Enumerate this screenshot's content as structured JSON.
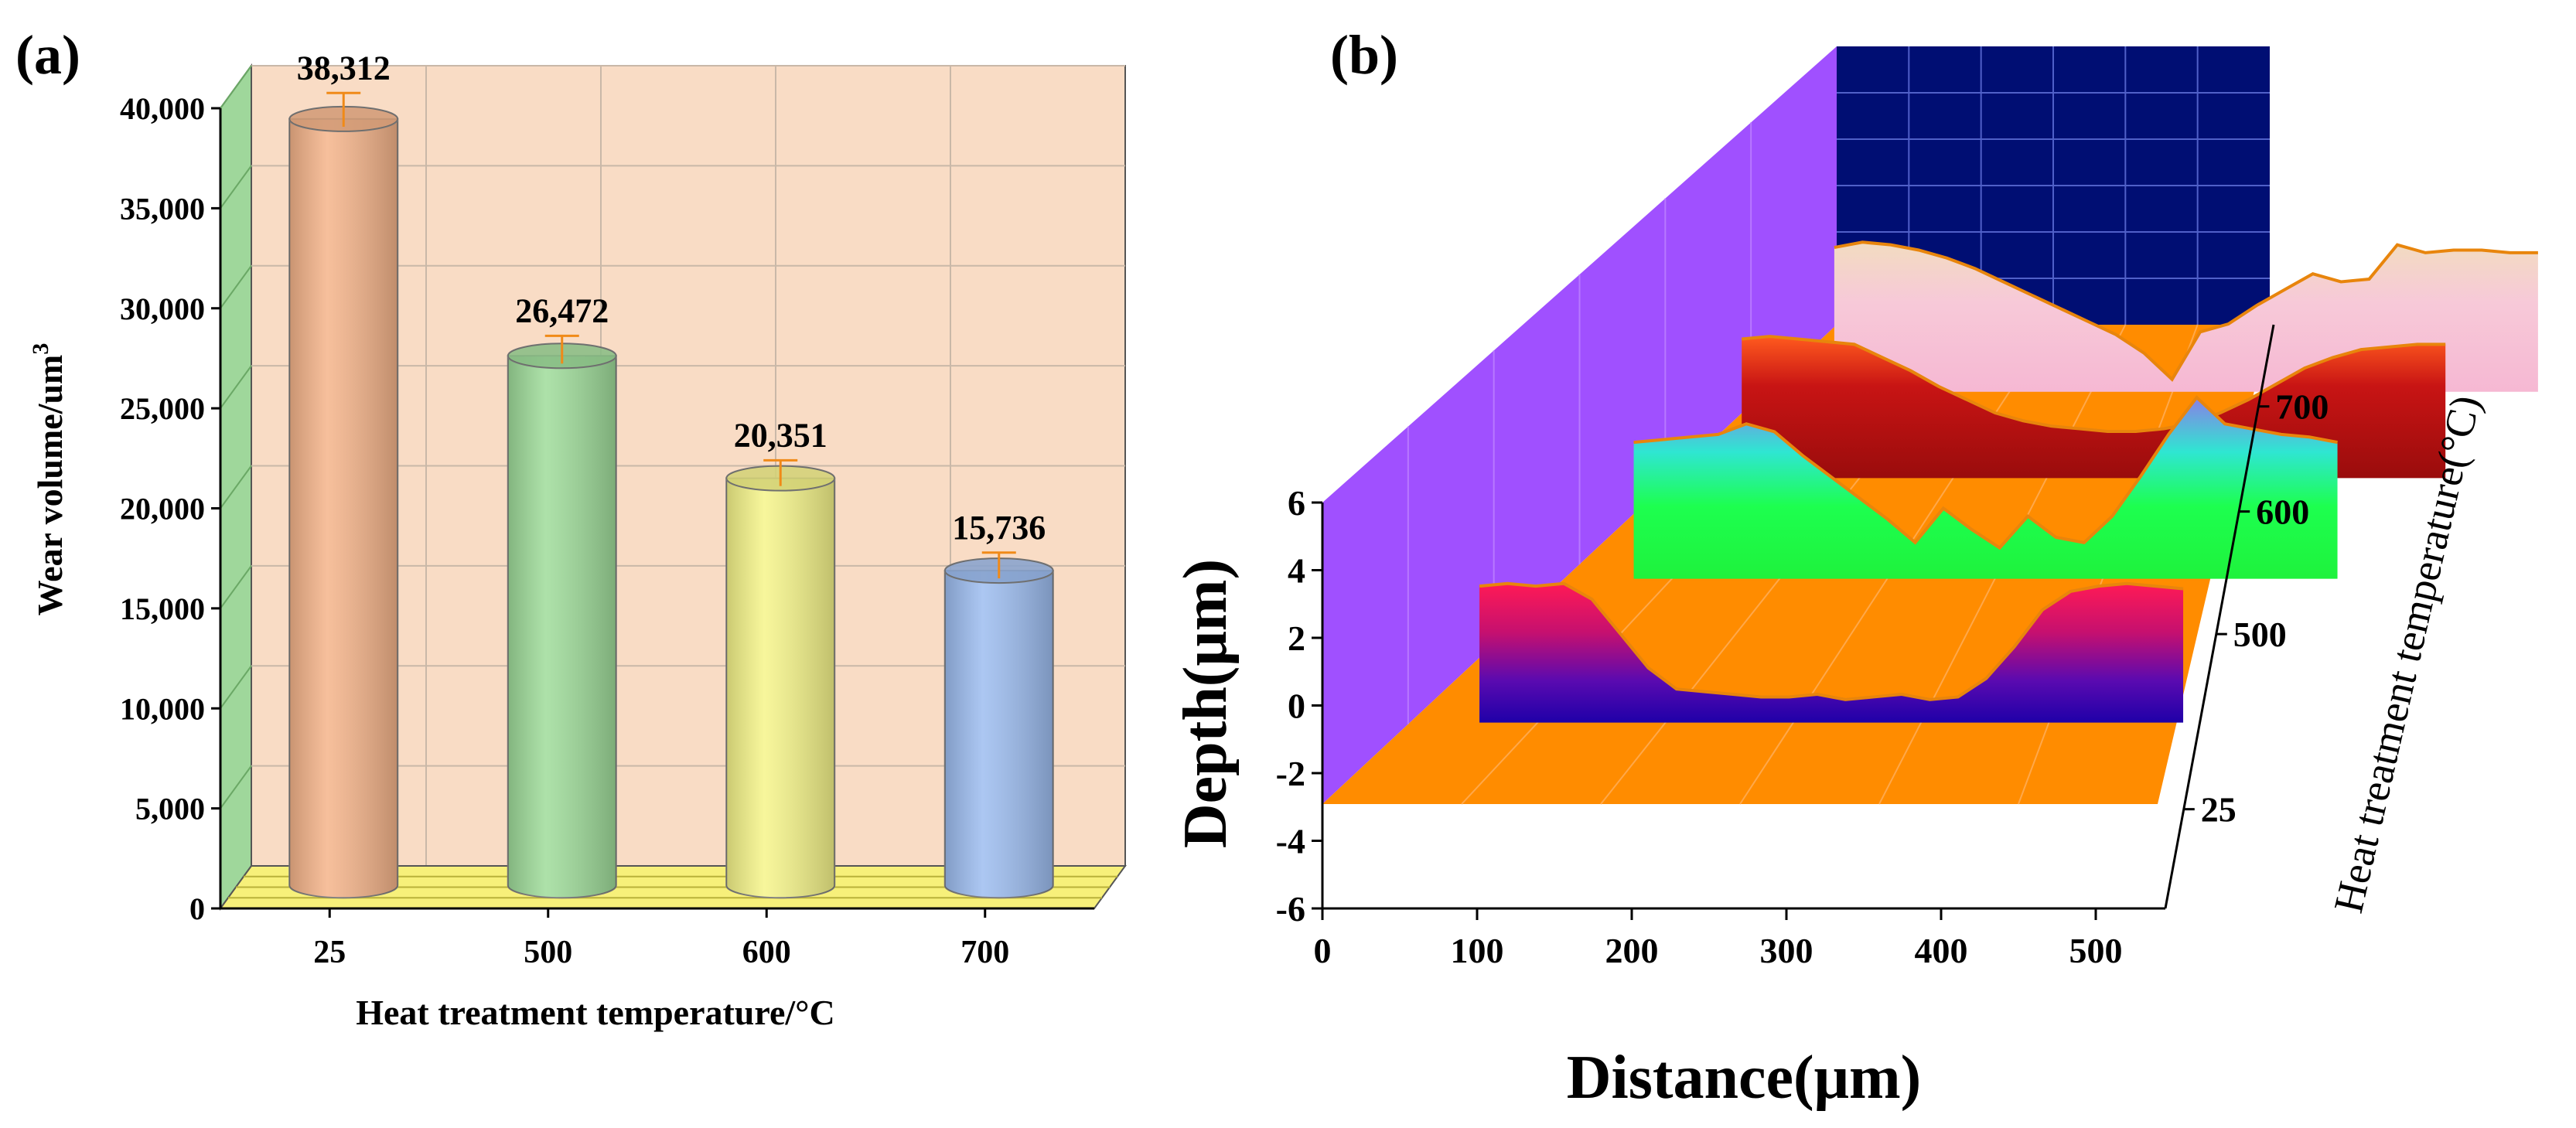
{
  "panel_labels": {
    "a": "(a)",
    "b": "(b)"
  },
  "chart_data": [
    {
      "panel": "(a)",
      "type": "bar",
      "style": "3d-cylinder",
      "categories": [
        "25",
        "500",
        "600",
        "700"
      ],
      "values": [
        38312,
        26472,
        20351,
        15736
      ],
      "value_labels": [
        "38,312",
        "26,472",
        "20,351",
        "15,736"
      ],
      "error_bars": [
        1300,
        1000,
        900,
        900
      ],
      "colors": [
        "#f5b48a",
        "#9fdc9a",
        "#f6f58a",
        "#9dbdf0"
      ],
      "xlabel": "Heat treatment temperature/°C",
      "ylabel": "Wear volume/um",
      "ylabel_superscript": "3",
      "ylim": [
        0,
        40000
      ],
      "yticks": [
        0,
        5000,
        10000,
        15000,
        20000,
        25000,
        30000,
        35000,
        40000
      ],
      "ytick_labels": [
        "0",
        "5,000",
        "10,000",
        "15,000",
        "20,000",
        "25,000",
        "30,000",
        "35,000",
        "40,000"
      ],
      "grid": true,
      "wall_color": "#f9dcc5",
      "side_wall_color": "#9fd79b",
      "floor_color": "#f7f07a"
    },
    {
      "panel": "(b)",
      "type": "area",
      "style": "3d-waterfall",
      "xlabel": "Distance(μm)",
      "ylabel": "Depth(μm)",
      "zlabel": "Heat treatment temperature(°C)",
      "xlim": [
        0,
        500
      ],
      "xticks": [
        "0",
        "100",
        "200",
        "300",
        "400",
        "500"
      ],
      "ylim": [
        -6,
        6
      ],
      "yticks": [
        "-6",
        "-4",
        "-2",
        "0",
        "2",
        "4",
        "6"
      ],
      "zticks": [
        "25",
        "500",
        "600",
        "700"
      ],
      "colors": {
        "side_wall": "#a050ff",
        "back_wall": "#000e73",
        "floor": "#ff8c00",
        "grid": "#d0d6ff"
      },
      "series": [
        {
          "name": "25",
          "x": [
            0,
            20,
            40,
            60,
            80,
            100,
            120,
            140,
            160,
            180,
            200,
            220,
            240,
            260,
            280,
            300,
            320,
            340,
            360,
            380,
            400,
            420,
            440,
            460,
            480,
            500
          ],
          "y": [
            4.3,
            4.4,
            4.3,
            4.4,
            3.8,
            2.5,
            1.2,
            0.4,
            0.3,
            0.2,
            0.1,
            0.1,
            0.2,
            0.0,
            0.1,
            0.2,
            0.0,
            0.1,
            0.8,
            2.0,
            3.4,
            4.1,
            4.3,
            4.4,
            4.3,
            4.2
          ]
        },
        {
          "name": "500",
          "x": [
            0,
            20,
            40,
            60,
            80,
            100,
            120,
            140,
            160,
            180,
            200,
            220,
            240,
            260,
            280,
            300,
            320,
            340,
            360,
            380,
            400,
            420,
            440,
            460,
            480,
            500
          ],
          "y": [
            4.3,
            4.4,
            4.5,
            4.6,
            5.0,
            4.7,
            3.8,
            3.0,
            2.2,
            1.4,
            0.5,
            1.8,
            1.0,
            0.3,
            1.5,
            0.7,
            0.5,
            1.5,
            3.0,
            4.6,
            6.0,
            5.0,
            4.8,
            4.6,
            4.5,
            4.3
          ]
        },
        {
          "name": "600",
          "x": [
            0,
            20,
            40,
            60,
            80,
            100,
            120,
            140,
            160,
            180,
            200,
            220,
            240,
            260,
            280,
            300,
            320,
            340,
            360,
            380,
            400,
            420,
            440,
            460,
            480,
            500
          ],
          "y": [
            4.4,
            4.5,
            4.4,
            4.3,
            4.2,
            3.7,
            3.2,
            2.6,
            2.1,
            1.6,
            1.3,
            1.1,
            1.0,
            0.9,
            0.9,
            1.0,
            1.2,
            1.6,
            2.1,
            2.7,
            3.3,
            3.7,
            4.0,
            4.1,
            4.2,
            4.2
          ]
        },
        {
          "name": "700",
          "x": [
            0,
            20,
            40,
            60,
            80,
            100,
            120,
            140,
            160,
            180,
            200,
            220,
            240,
            260,
            280,
            300,
            320,
            340,
            360,
            380,
            400,
            420,
            440,
            460,
            480,
            500
          ],
          "y": [
            4.6,
            4.8,
            4.7,
            4.5,
            4.2,
            3.8,
            3.3,
            2.8,
            2.3,
            1.8,
            1.3,
            0.6,
            -0.4,
            1.4,
            1.7,
            2.4,
            3.0,
            3.6,
            3.3,
            3.4,
            4.7,
            4.4,
            4.5,
            4.5,
            4.4,
            4.4
          ]
        }
      ]
    }
  ]
}
